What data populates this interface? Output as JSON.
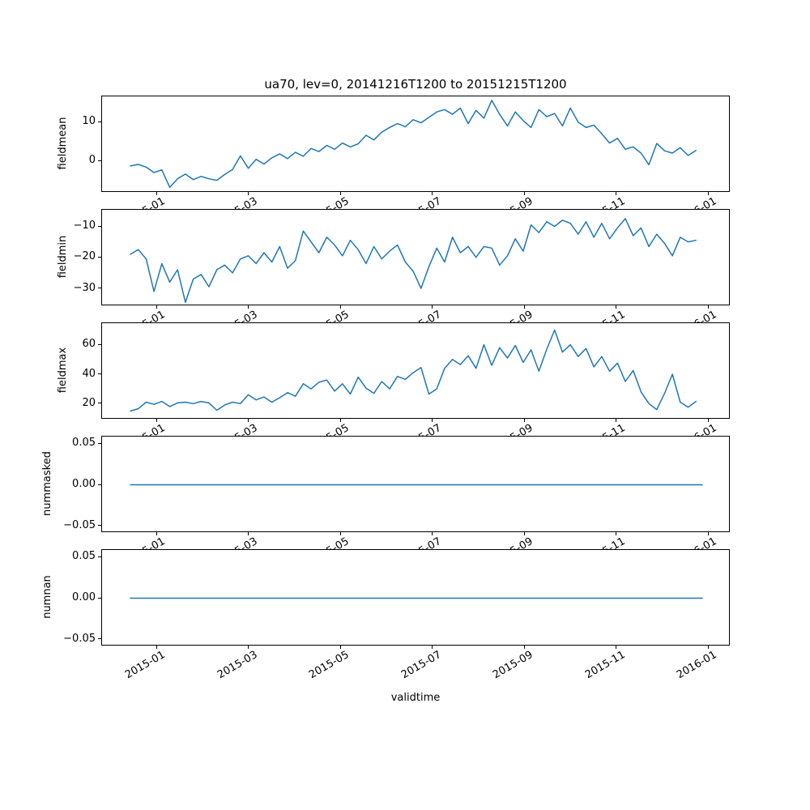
{
  "chart_data": {
    "type": "line",
    "title": "ua70, lev=0, 20141216T1200 to 20151215T1200",
    "xlabel": "validtime",
    "x_tick_labels": [
      "2015-01",
      "2015-03",
      "2015-05",
      "2015-07",
      "2015-09",
      "2015-11",
      "2016-01"
    ],
    "x_range_days": 364,
    "day_step": 5,
    "line_color": "#1f77b4",
    "grid": false,
    "legend": "none",
    "subplots": [
      {
        "ylabel": "fieldmean",
        "ylim": [
          -8.0,
          16.4
        ],
        "yticks": [
          {
            "v": 10,
            "label": "10"
          },
          {
            "v": 0,
            "label": "0"
          }
        ],
        "values": [
          -1.3,
          -0.9,
          -1.6,
          -3.0,
          -2.3,
          -6.8,
          -4.6,
          -3.4,
          -4.8,
          -4.0,
          -4.6,
          -5.0,
          -3.5,
          -2.2,
          1.3,
          -1.9,
          0.4,
          -0.8,
          0.8,
          1.8,
          0.6,
          2.2,
          1.2,
          3.2,
          2.4,
          4.0,
          3.0,
          4.6,
          3.6,
          4.4,
          6.6,
          5.4,
          7.4,
          8.6,
          9.6,
          8.8,
          10.6,
          9.8,
          11.2,
          12.6,
          13.2,
          12.0,
          13.6,
          9.6,
          13.0,
          11.0,
          15.6,
          12.0,
          9.0,
          12.6,
          10.4,
          8.6,
          13.2,
          11.4,
          12.2,
          9.0,
          13.6,
          10.0,
          8.6,
          9.2,
          7.0,
          4.6,
          5.8,
          3.0,
          3.6,
          2.0,
          -1.0,
          4.5,
          2.6,
          2.0,
          3.4,
          1.4,
          2.7
        ]
      },
      {
        "ylabel": "fieldmin",
        "ylim": [
          -35.5,
          -4.9
        ],
        "yticks": [
          {
            "v": -10,
            "label": "−10"
          },
          {
            "v": -20,
            "label": "−20"
          },
          {
            "v": -30,
            "label": "−30"
          }
        ],
        "values": [
          -19.0,
          -17.5,
          -20.5,
          -31.0,
          -22.0,
          -28.0,
          -24.0,
          -34.5,
          -27.0,
          -25.5,
          -29.5,
          -24.0,
          -22.5,
          -25.0,
          -20.5,
          -19.5,
          -22.0,
          -18.5,
          -21.5,
          -16.5,
          -23.5,
          -21.0,
          -11.5,
          -15.0,
          -18.5,
          -13.5,
          -16.0,
          -19.5,
          -14.5,
          -17.5,
          -22.0,
          -16.5,
          -20.5,
          -18.0,
          -16.0,
          -21.5,
          -24.5,
          -30.0,
          -23.0,
          -17.0,
          -21.5,
          -13.5,
          -18.5,
          -16.5,
          -20.0,
          -16.5,
          -17.0,
          -22.5,
          -19.5,
          -14.0,
          -18.0,
          -9.5,
          -12.0,
          -8.5,
          -10.0,
          -8.0,
          -9.0,
          -12.5,
          -8.5,
          -13.5,
          -9.0,
          -14.0,
          -10.5,
          -7.5,
          -13.0,
          -10.5,
          -16.5,
          -12.5,
          -15.5,
          -19.5,
          -13.5,
          -15.0,
          -14.5
        ]
      },
      {
        "ylabel": "fieldmax",
        "ylim": [
          9.7,
          74.1
        ],
        "yticks": [
          {
            "v": 60,
            "label": "60"
          },
          {
            "v": 40,
            "label": "40"
          },
          {
            "v": 20,
            "label": "20"
          }
        ],
        "values": [
          15.0,
          16.5,
          21.0,
          19.5,
          21.5,
          18.0,
          20.5,
          21.0,
          20.0,
          21.5,
          20.5,
          15.5,
          19.0,
          21.0,
          20.0,
          26.0,
          22.5,
          24.5,
          21.0,
          24.0,
          27.5,
          25.0,
          33.5,
          30.0,
          34.5,
          36.0,
          28.5,
          33.5,
          26.5,
          38.0,
          30.5,
          27.0,
          35.0,
          30.0,
          38.5,
          36.5,
          41.0,
          44.5,
          26.5,
          30.0,
          44.0,
          50.0,
          46.5,
          52.5,
          44.0,
          60.0,
          46.0,
          58.0,
          51.0,
          59.5,
          48.0,
          56.5,
          42.0,
          57.0,
          70.0,
          55.0,
          60.0,
          52.0,
          57.5,
          45.0,
          52.0,
          42.0,
          47.5,
          35.0,
          42.5,
          28.0,
          20.0,
          16.0,
          27.0,
          40.0,
          21.0,
          17.5,
          21.5
        ]
      },
      {
        "ylabel": "nummasked",
        "ylim": [
          -0.0575,
          0.0575
        ],
        "yticks": [
          {
            "v": 0.05,
            "label": "0.05"
          },
          {
            "v": 0,
            "label": "0.00"
          },
          {
            "v": -0.05,
            "label": "−0.05"
          }
        ],
        "flat_value": 0
      },
      {
        "ylabel": "numnan",
        "ylim": [
          -0.0575,
          0.0575
        ],
        "yticks": [
          {
            "v": 0.05,
            "label": "0.05"
          },
          {
            "v": 0,
            "label": "0.00"
          },
          {
            "v": -0.05,
            "label": "−0.05"
          }
        ],
        "flat_value": 0
      }
    ]
  }
}
